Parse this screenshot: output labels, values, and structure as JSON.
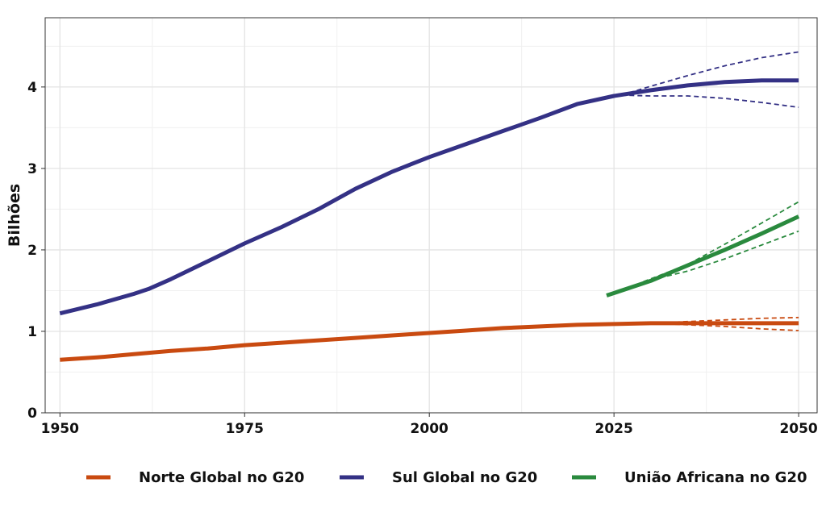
{
  "chart_data": {
    "type": "line",
    "title": "",
    "xlabel": "",
    "ylabel": "Bilhões",
    "xlim": [
      1948,
      2052.5
    ],
    "ylim": [
      0,
      4.85
    ],
    "x_ticks": [
      1950,
      1975,
      2000,
      2025,
      2050
    ],
    "x_tick_labels": [
      "1950",
      "1975",
      "2000",
      "2025",
      "2050"
    ],
    "y_ticks": [
      0,
      1,
      2,
      3,
      4
    ],
    "y_tick_labels": [
      "0",
      "1",
      "2",
      "3",
      "4"
    ],
    "grid": true,
    "legend_position": "bottom",
    "series": [
      {
        "name": "Norte Global no G20",
        "color": "#C94A10",
        "x": [
          1950,
          1955,
          1960,
          1965,
          1970,
          1975,
          1980,
          1985,
          1990,
          1995,
          2000,
          2005,
          2010,
          2015,
          2020,
          2025,
          2030,
          2035,
          2040,
          2045,
          2050
        ],
        "values": [
          0.65,
          0.68,
          0.72,
          0.76,
          0.79,
          0.83,
          0.86,
          0.89,
          0.92,
          0.95,
          0.98,
          1.01,
          1.04,
          1.06,
          1.08,
          1.09,
          1.1,
          1.1,
          1.1,
          1.1,
          1.1
        ],
        "projection": {
          "x": [
            2030,
            2035,
            2040,
            2045,
            2050
          ],
          "upper": [
            1.1,
            1.12,
            1.14,
            1.16,
            1.17
          ],
          "lower": [
            1.1,
            1.08,
            1.06,
            1.03,
            1.01
          ]
        }
      },
      {
        "name": "Sul Global no G20",
        "color": "#343185",
        "x": [
          1950,
          1955,
          1960,
          1962,
          1965,
          1970,
          1975,
          1980,
          1985,
          1990,
          1995,
          2000,
          2005,
          2010,
          2015,
          2020,
          2025,
          2030,
          2035,
          2040,
          2045,
          2050
        ],
        "values": [
          1.22,
          1.33,
          1.46,
          1.52,
          1.64,
          1.86,
          2.08,
          2.28,
          2.5,
          2.75,
          2.96,
          3.14,
          3.3,
          3.46,
          3.62,
          3.79,
          3.89,
          3.96,
          4.02,
          4.06,
          4.08,
          4.08
        ],
        "projection": {
          "x": [
            2026,
            2030,
            2035,
            2040,
            2045,
            2050
          ],
          "upper": [
            3.9,
            4.01,
            4.14,
            4.26,
            4.36,
            4.43
          ],
          "lower": [
            3.9,
            3.89,
            3.89,
            3.86,
            3.81,
            3.75
          ]
        }
      },
      {
        "name": "União Africana no G20",
        "color": "#2A8A3E",
        "x": [
          2024,
          2030,
          2035,
          2040,
          2045,
          2050
        ],
        "values": [
          1.44,
          1.62,
          1.81,
          2.0,
          2.2,
          2.41
        ],
        "projection": {
          "x": [
            2029,
            2035,
            2040,
            2045,
            2050
          ],
          "upper": [
            1.61,
            1.82,
            2.07,
            2.33,
            2.59
          ],
          "lower": [
            1.61,
            1.74,
            1.89,
            2.06,
            2.23
          ]
        }
      }
    ]
  }
}
